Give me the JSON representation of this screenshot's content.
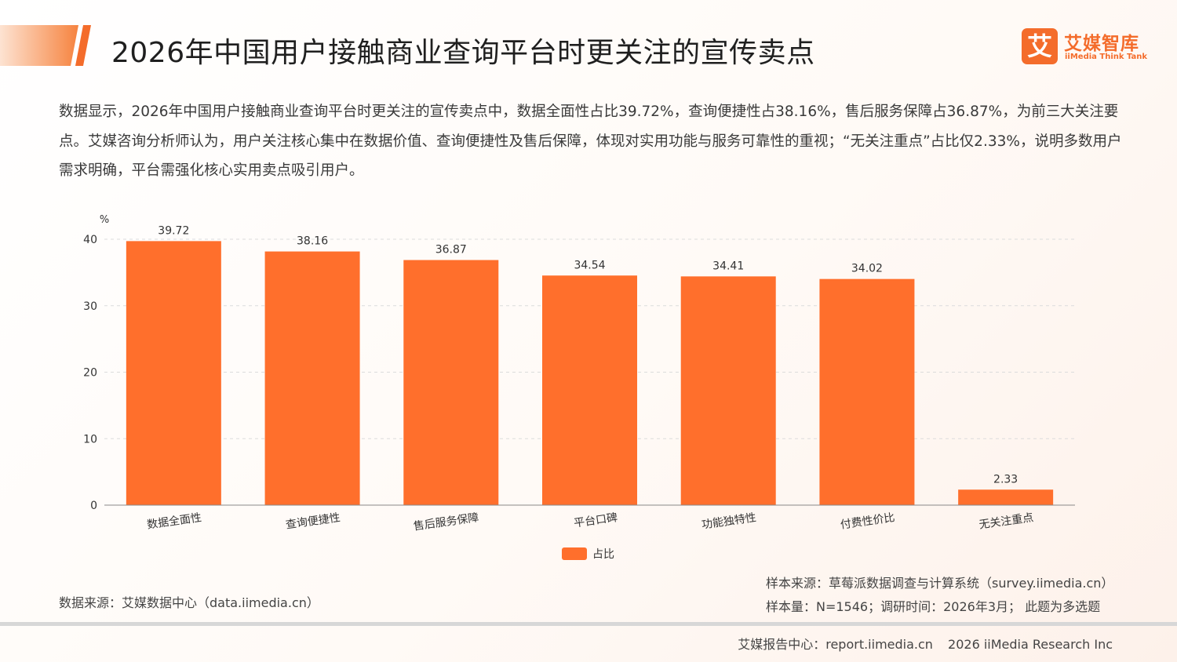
{
  "header": {
    "title": "2026年中国用户接触商业查询平台时更关注的宣传卖点",
    "accent_color": "#f46c2b"
  },
  "logo": {
    "mark": "艾",
    "name_cn": "艾媒智库",
    "name_en": "iiMedia Think Tank"
  },
  "summary": "数据显示，2026年中国用户接触商业查询平台时更关注的宣传卖点中，数据全面性占比39.72%，查询便捷性占38.16%，售后服务保障占36.87%，为前三大关注要点。艾媒咨询分析师认为，用户关注核心集中在数据价值、查询便捷性及售后保障，体现对实用功能与服务可靠性的重视；“无关注重点”占比仅2.33%，说明多数用户需求明确，平台需强化核心实用卖点吸引用户。",
  "chart_data": {
    "type": "bar",
    "unit": "%",
    "categories": [
      "数据全面性",
      "查询便捷性",
      "售后服务保障",
      "平台口碑",
      "功能独特性",
      "付费性价比",
      "无关注重点"
    ],
    "series": [
      {
        "name": "占比",
        "values": [
          39.72,
          38.16,
          36.87,
          34.54,
          34.41,
          34.02,
          2.33
        ],
        "color": "#ff6f2c"
      }
    ],
    "ylim": [
      0,
      40
    ],
    "yticks": [
      0,
      10,
      20,
      30,
      40
    ],
    "grid": true,
    "legend_position": "bottom-center"
  },
  "sources": {
    "data_source": "数据来源：艾媒数据中心（data.iimedia.cn）",
    "sample_source": "样本来源：草莓派数据调查与计算系统（survey.iimedia.cn）",
    "sample_info": "样本量：N=1546；调研时间：2026年3月；  此题为多选题"
  },
  "footer": {
    "report_center": "艾媒报告中心：report.iimedia.cn",
    "copyright": "2026 iiMedia Research Inc"
  }
}
